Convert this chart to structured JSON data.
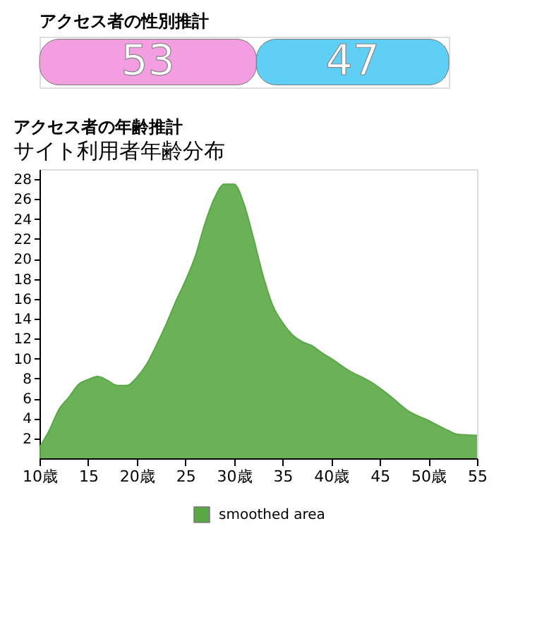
{
  "chart_data": [
    {
      "type": "bar",
      "title": "アクセス者の性別推計",
      "orientation": "horizontal",
      "stacked": true,
      "relative": false,
      "categories": [
        null
      ],
      "data_labels": true,
      "tick_labels": false,
      "series": [
        {
          "color": "#f29ee0",
          "values": [
            53
          ]
        },
        {
          "color": "#5fcff5",
          "values": [
            47
          ]
        }
      ]
    },
    {
      "type": "area",
      "title": "アクセス者の年齢推計",
      "subtitle": "サイト利用者年齢分布",
      "xlim": [
        10,
        55
      ],
      "xticks": [
        {
          "value": 10,
          "label": "10歳"
        },
        15,
        {
          "value": 20,
          "label": "20歳"
        },
        25,
        {
          "value": 30,
          "label": "30歳"
        },
        35,
        {
          "value": 40,
          "label": "40歳"
        },
        45,
        {
          "value": 50,
          "label": "50歳"
        },
        55
      ],
      "ylim": [
        0,
        29
      ],
      "yticks": [
        2,
        4,
        6,
        8,
        10,
        12,
        14,
        16,
        18,
        20,
        22,
        24,
        26,
        28
      ],
      "grid": false,
      "legend": "bottom",
      "marker": "none",
      "series": [
        {
          "name": "smoothed area",
          "color": "#5aa845",
          "x": [
            10,
            11,
            12,
            13,
            14,
            15,
            16,
            17,
            18,
            19,
            20,
            21,
            22,
            23,
            24,
            25,
            26,
            27,
            28,
            29,
            30,
            31,
            32,
            33,
            34,
            35,
            36,
            37,
            38,
            39,
            40,
            42,
            44,
            46,
            48,
            50,
            52,
            53,
            55
          ],
          "values": [
            1.1,
            2.8,
            4.9,
            6.1,
            7.4,
            7.9,
            8.2,
            7.8,
            7.3,
            7.3,
            8.1,
            9.4,
            11.3,
            13.4,
            15.7,
            17.8,
            20.2,
            23.5,
            26.1,
            27.5,
            27.5,
            25.6,
            22.1,
            18.3,
            15.3,
            13.6,
            12.4,
            11.7,
            11.3,
            10.6,
            10.0,
            8.7,
            7.7,
            6.3,
            4.7,
            3.8,
            2.8,
            2.4,
            2.3
          ]
        }
      ]
    }
  ]
}
